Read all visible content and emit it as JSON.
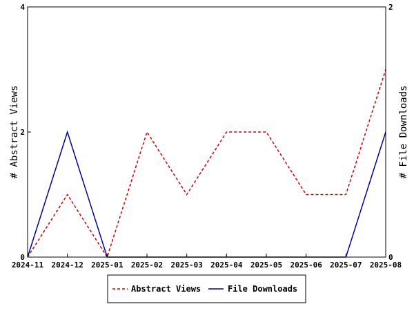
{
  "chart_data": {
    "type": "line",
    "x": [
      "2024-11",
      "2024-12",
      "2025-01",
      "2025-02",
      "2025-03",
      "2025-04",
      "2025-05",
      "2025-06",
      "2025-07",
      "2025-08"
    ],
    "ylabel_left": "# Abstract Views",
    "ylabel_right": "# File Downloads",
    "ylim_left": [
      0,
      4
    ],
    "ylim_right": [
      0,
      2
    ],
    "yticks_left": [
      "0",
      "2",
      "4"
    ],
    "yticks_right": [
      "0",
      "2"
    ],
    "grid": false,
    "legend_position": "bottom-center",
    "series": [
      {
        "name": "Abstract Views",
        "axis": "left",
        "color": "#cc0000",
        "style": "dashed",
        "values": [
          0,
          1,
          0,
          2,
          1,
          2,
          2,
          1,
          1,
          3
        ]
      },
      {
        "name": "File Downloads",
        "axis": "right",
        "color": "#000099",
        "style": "solid",
        "values": [
          0,
          1,
          0,
          0,
          0,
          0,
          0,
          0,
          0,
          1
        ]
      }
    ]
  }
}
